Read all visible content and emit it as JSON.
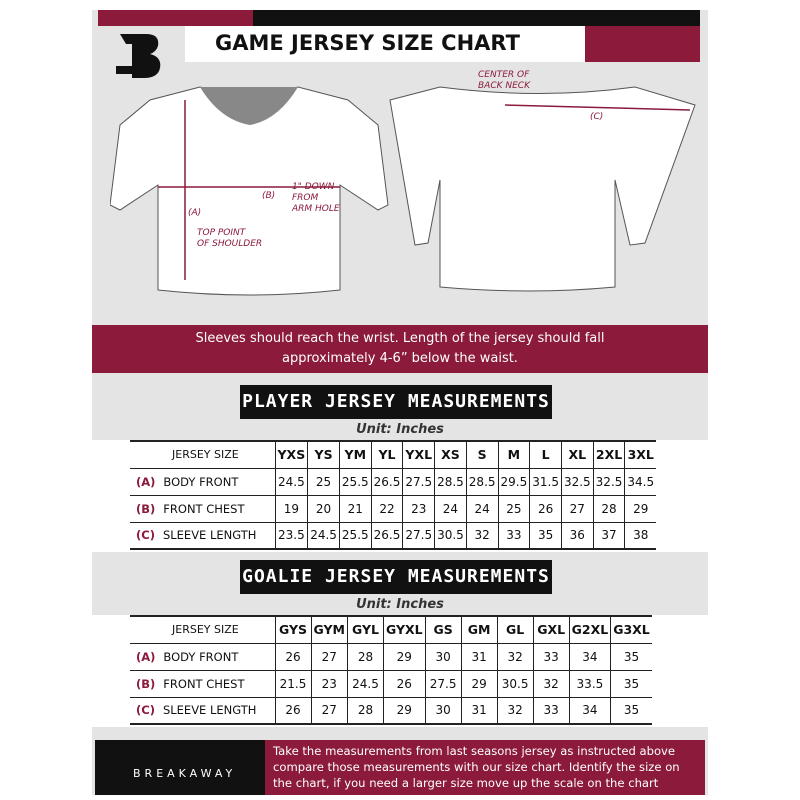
{
  "header": {
    "title": "GAME JERSEY SIZE CHART",
    "brand_color": "#8b1a3b"
  },
  "diagram": {
    "front_labels": {
      "a_label": "(A)",
      "a_note_1": "TOP POINT",
      "a_note_2": "OF SHOULDER",
      "b_label": "(B)",
      "b_note_1": "1\" DOWN",
      "b_note_2": "FROM",
      "b_note_3": "ARM HOLE"
    },
    "back_labels": {
      "c_label": "(C)",
      "c_note_1": "CENTER OF",
      "c_note_2": "BACK NECK"
    }
  },
  "banner": {
    "line1": "Sleeves should reach the wrist. Length of the jersey should fall",
    "line2": "approximately 4-6” below the waist."
  },
  "player": {
    "title": "PLAYER JERSEY MEASUREMENTS",
    "unit": "Unit: Inches",
    "size_header": "JERSEY SIZE",
    "sizes": [
      "YXS",
      "YS",
      "YM",
      "YL",
      "YXL",
      "XS",
      "S",
      "M",
      "L",
      "XL",
      "2XL",
      "3XL"
    ],
    "rows": [
      {
        "code": "(A)",
        "label": "BODY FRONT",
        "values": [
          "24.5",
          "25",
          "25.5",
          "26.5",
          "27.5",
          "28.5",
          "28.5",
          "29.5",
          "31.5",
          "32.5",
          "32.5",
          "34.5"
        ]
      },
      {
        "code": "(B)",
        "label": "FRONT CHEST",
        "values": [
          "19",
          "20",
          "21",
          "22",
          "23",
          "24",
          "24",
          "25",
          "26",
          "27",
          "28",
          "29"
        ]
      },
      {
        "code": "(C)",
        "label": "SLEEVE LENGTH",
        "values": [
          "23.5",
          "24.5",
          "25.5",
          "26.5",
          "27.5",
          "30.5",
          "32",
          "33",
          "35",
          "36",
          "37",
          "38"
        ]
      }
    ]
  },
  "goalie": {
    "title": "GOALIE JERSEY MEASUREMENTS",
    "unit": "Unit: Inches",
    "size_header": "JERSEY SIZE",
    "sizes": [
      "GYS",
      "GYM",
      "GYL",
      "GYXL",
      "GS",
      "GM",
      "GL",
      "GXL",
      "G2XL",
      "G3XL"
    ],
    "rows": [
      {
        "code": "(A)",
        "label": "BODY FRONT",
        "values": [
          "26",
          "27",
          "28",
          "29",
          "30",
          "31",
          "32",
          "33",
          "34",
          "35"
        ]
      },
      {
        "code": "(B)",
        "label": "FRONT CHEST",
        "values": [
          "21.5",
          "23",
          "24.5",
          "26",
          "27.5",
          "29",
          "30.5",
          "32",
          "33.5",
          "35"
        ]
      },
      {
        "code": "(C)",
        "label": "SLEEVE LENGTH",
        "values": [
          "26",
          "27",
          "28",
          "29",
          "30",
          "31",
          "32",
          "33",
          "34",
          "35"
        ]
      }
    ]
  },
  "footer": {
    "brand": "BREAKAWAY",
    "text": "Take the measurements from last seasons jersey as instructed above compare those measurements  with our size chart. Identify the size on the chart, if you need a larger size move up the scale on the chart"
  }
}
